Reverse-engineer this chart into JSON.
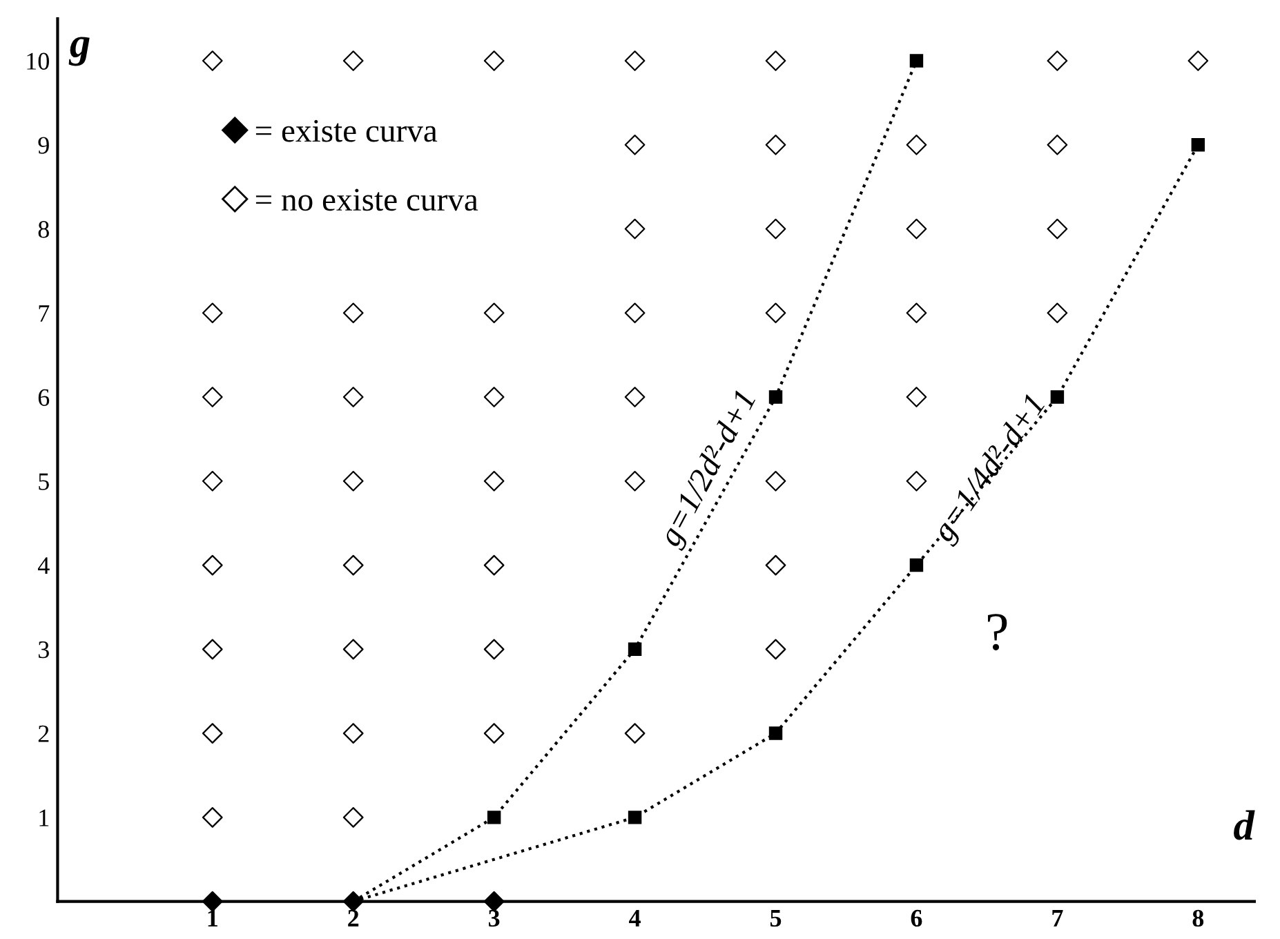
{
  "chart_data": {
    "type": "scatter",
    "xlabel": "d",
    "ylabel": "g",
    "xlim": [
      -0.1,
      8.4
    ],
    "ylim": [
      0,
      10.5
    ],
    "xticks": [
      1,
      2,
      3,
      4,
      5,
      6,
      7,
      8
    ],
    "yticks": [
      1,
      2,
      3,
      4,
      5,
      6,
      7,
      8,
      9,
      10
    ],
    "grid": false,
    "legend": "top left",
    "series": [
      {
        "name": "= existe curva",
        "marker": "diamond",
        "color": "#000000",
        "x": [
          1,
          2,
          3
        ],
        "values": [
          0,
          0,
          0
        ]
      },
      {
        "name": "= no existe curva",
        "marker": "diamond",
        "color": "#ffffff",
        "x": [
          1,
          1,
          1,
          1,
          1,
          1,
          1,
          1,
          2,
          2,
          2,
          2,
          2,
          2,
          2,
          2,
          3,
          3,
          3,
          3,
          3,
          3,
          3,
          4,
          4,
          4,
          4,
          4,
          4,
          4,
          5,
          5,
          5,
          5,
          5,
          5,
          5,
          6,
          6,
          6,
          6,
          6,
          7,
          7,
          7,
          7,
          8
        ],
        "values": [
          10,
          7,
          6,
          5,
          4,
          3,
          2,
          1,
          10,
          7,
          6,
          5,
          4,
          3,
          2,
          1,
          10,
          7,
          6,
          5,
          4,
          3,
          2,
          10,
          9,
          8,
          7,
          6,
          5,
          2,
          10,
          9,
          8,
          7,
          5,
          4,
          3,
          9,
          8,
          7,
          6,
          5,
          10,
          9,
          8,
          7,
          10
        ]
      },
      {
        "type": "line",
        "marker": "square",
        "line_style": "dotted",
        "color": "#000000",
        "x": [
          2,
          3,
          4,
          5,
          6
        ],
        "values": [
          0,
          1,
          3,
          6,
          10
        ]
      },
      {
        "type": "line",
        "marker": "square",
        "line_style": "dotted",
        "color": "#000000",
        "x": [
          2,
          4,
          5,
          6,
          7,
          8
        ],
        "values": [
          0,
          1,
          2,
          4,
          6,
          9
        ]
      }
    ],
    "annotations": [
      "g=1/2d²-d+1",
      "g=1/4d²-d+1",
      "?"
    ]
  }
}
